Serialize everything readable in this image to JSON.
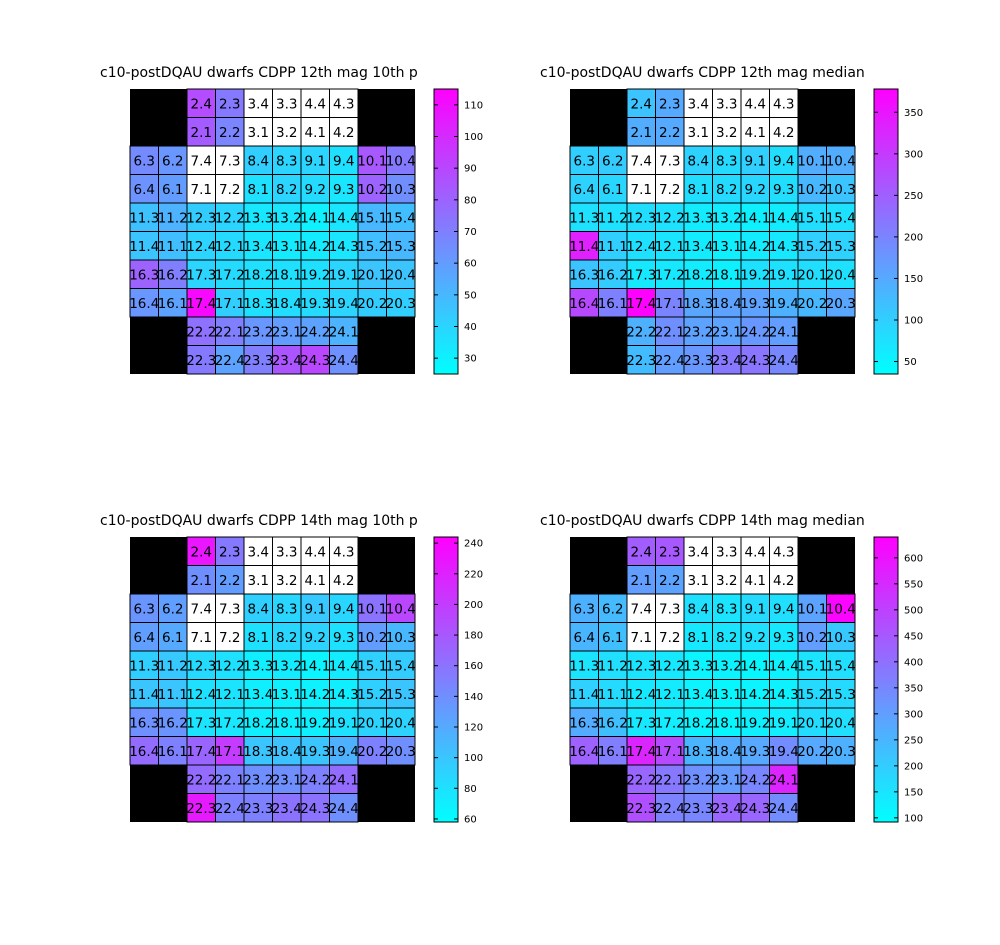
{
  "chart_data": [
    {
      "type": "heatmap",
      "title": "c10-postDQAU dwarfs  CDPP 12th mag 10th p",
      "colorbar": {
        "min": 25,
        "max": 115,
        "ticks": [
          30,
          40,
          50,
          60,
          70,
          80,
          90,
          100,
          110
        ]
      },
      "rows": [
        [
          null,
          null,
          88,
          72,
          null,
          null,
          null,
          null,
          null,
          null
        ],
        [
          null,
          null,
          83,
          68,
          null,
          null,
          null,
          null,
          null,
          null
        ],
        [
          66,
          62,
          null,
          null,
          42,
          40,
          40,
          36,
          84,
          72
        ],
        [
          63,
          60,
          null,
          null,
          36,
          40,
          38,
          34,
          80,
          65
        ],
        [
          47,
          52,
          43,
          40,
          33,
          34,
          30,
          34,
          50,
          48
        ],
        [
          46,
          48,
          40,
          38,
          34,
          32,
          32,
          34,
          48,
          50
        ],
        [
          80,
          70,
          40,
          38,
          36,
          36,
          36,
          40,
          46,
          46
        ],
        [
          62,
          58,
          112,
          42,
          36,
          37,
          38,
          40,
          43,
          42
        ],
        [
          null,
          null,
          75,
          70,
          62,
          60,
          58,
          52,
          null,
          null
        ],
        [
          null,
          null,
          72,
          58,
          70,
          85,
          90,
          64,
          null,
          null
        ]
      ]
    },
    {
      "type": "heatmap",
      "title": "c10-postDQAU dwarfs  CDPP 12th mag median",
      "colorbar": {
        "min": 35,
        "max": 378,
        "ticks": [
          50,
          100,
          150,
          200,
          250,
          300,
          350
        ]
      },
      "rows": [
        [
          null,
          null,
          115,
          150,
          null,
          null,
          null,
          null,
          null,
          null
        ],
        [
          null,
          null,
          145,
          150,
          null,
          null,
          null,
          null,
          null,
          null
        ],
        [
          100,
          105,
          null,
          null,
          95,
          85,
          100,
          80,
          145,
          145
        ],
        [
          95,
          90,
          null,
          null,
          80,
          85,
          90,
          80,
          130,
          115
        ],
        [
          75,
          75,
          80,
          75,
          60,
          60,
          55,
          60,
          80,
          75
        ],
        [
          335,
          100,
          75,
          70,
          60,
          55,
          60,
          65,
          100,
          95
        ],
        [
          115,
          105,
          65,
          65,
          60,
          55,
          75,
          75,
          80,
          75
        ],
        [
          280,
          205,
          375,
          200,
          155,
          160,
          160,
          140,
          130,
          155
        ],
        [
          null,
          null,
          140,
          185,
          160,
          160,
          175,
          165,
          null,
          null
        ],
        [
          null,
          null,
          125,
          165,
          175,
          215,
          220,
          195,
          null,
          null
        ]
      ]
    },
    {
      "type": "heatmap",
      "title": "c10-postDQAU dwarfs  CDPP 14th mag 10th p",
      "colorbar": {
        "min": 58,
        "max": 244,
        "ticks": [
          60,
          80,
          100,
          120,
          140,
          160,
          180,
          200,
          220,
          240
        ]
      },
      "rows": [
        [
          null,
          null,
          228,
          155,
          null,
          null,
          null,
          null,
          null,
          null
        ],
        [
          null,
          null,
          140,
          130,
          null,
          null,
          null,
          null,
          null,
          null
        ],
        [
          135,
          128,
          null,
          null,
          92,
          88,
          98,
          88,
          160,
          192
        ],
        [
          128,
          120,
          null,
          null,
          80,
          88,
          90,
          80,
          130,
          110
        ],
        [
          92,
          98,
          85,
          80,
          70,
          72,
          65,
          72,
          92,
          95
        ],
        [
          100,
          100,
          80,
          78,
          70,
          68,
          68,
          70,
          92,
          100
        ],
        [
          138,
          135,
          78,
          76,
          70,
          70,
          70,
          80,
          90,
          90
        ],
        [
          165,
          150,
          170,
          200,
          100,
          102,
          100,
          115,
          150,
          140
        ],
        [
          null,
          null,
          165,
          150,
          140,
          140,
          150,
          165,
          null,
          null
        ],
        [
          null,
          null,
          225,
          150,
          150,
          160,
          160,
          140,
          null,
          null
        ]
      ]
    },
    {
      "type": "heatmap",
      "title": "c10-postDQAU dwarfs  CDPP 14th mag median",
      "colorbar": {
        "min": 92,
        "max": 640,
        "ticks": [
          100,
          150,
          200,
          250,
          300,
          350,
          400,
          450,
          500,
          550,
          600
        ]
      },
      "rows": [
        [
          null,
          null,
          440,
          450,
          null,
          null,
          null,
          null,
          null,
          null
        ],
        [
          null,
          null,
          300,
          290,
          null,
          null,
          null,
          null,
          null,
          null
        ],
        [
          260,
          240,
          null,
          null,
          160,
          150,
          170,
          160,
          290,
          630
        ],
        [
          250,
          230,
          null,
          null,
          140,
          150,
          160,
          140,
          300,
          210
        ],
        [
          150,
          160,
          150,
          140,
          115,
          120,
          110,
          120,
          150,
          160
        ],
        [
          190,
          170,
          140,
          135,
          115,
          110,
          115,
          120,
          170,
          170
        ],
        [
          270,
          230,
          140,
          130,
          115,
          110,
          125,
          130,
          165,
          160
        ],
        [
          430,
          370,
          560,
          480,
          250,
          270,
          280,
          340,
          280,
          260
        ],
        [
          null,
          null,
          420,
          380,
          330,
          310,
          350,
          560,
          null,
          null
        ],
        [
          null,
          null,
          470,
          360,
          350,
          420,
          420,
          340,
          null,
          null
        ]
      ]
    }
  ],
  "grid_labels": [
    [
      null,
      null,
      "2.4",
      "2.3",
      "3.4",
      "3.3",
      "4.4",
      "4.3",
      null,
      null
    ],
    [
      null,
      null,
      "2.1",
      "2.2",
      "3.1",
      "3.2",
      "4.1",
      "4.2",
      null,
      null
    ],
    [
      "6.3",
      "6.2",
      "7.4",
      "7.3",
      "8.4",
      "8.3",
      "9.1",
      "9.4",
      "10.1",
      "10.4"
    ],
    [
      "6.4",
      "6.1",
      "7.1",
      "7.2",
      "8.1",
      "8.2",
      "9.2",
      "9.3",
      "10.2",
      "10.3"
    ],
    [
      "11.3",
      "11.2",
      "12.3",
      "12.2",
      "13.3",
      "13.2",
      "14.1",
      "14.4",
      "15.1",
      "15.4"
    ],
    [
      "11.4",
      "11.1",
      "12.4",
      "12.1",
      "13.4",
      "13.1",
      "14.2",
      "14.3",
      "15.2",
      "15.3"
    ],
    [
      "16.3",
      "16.2",
      "17.3",
      "17.2",
      "18.2",
      "18.1",
      "19.2",
      "19.1",
      "20.1",
      "20.4"
    ],
    [
      "16.4",
      "16.1",
      "17.4",
      "17.1",
      "18.3",
      "18.4",
      "19.3",
      "19.4",
      "20.2",
      "20.3"
    ],
    [
      null,
      null,
      "22.2",
      "22.1",
      "23.2",
      "23.1",
      "24.2",
      "24.1",
      null,
      null
    ],
    [
      null,
      null,
      "22.3",
      "22.4",
      "23.3",
      "23.4",
      "24.3",
      "24.4",
      null,
      null
    ]
  ],
  "colors": {
    "low": "#00ffff",
    "high": "#ff00ff",
    "missing": "#ffffff",
    "off_detector": "#000000"
  }
}
